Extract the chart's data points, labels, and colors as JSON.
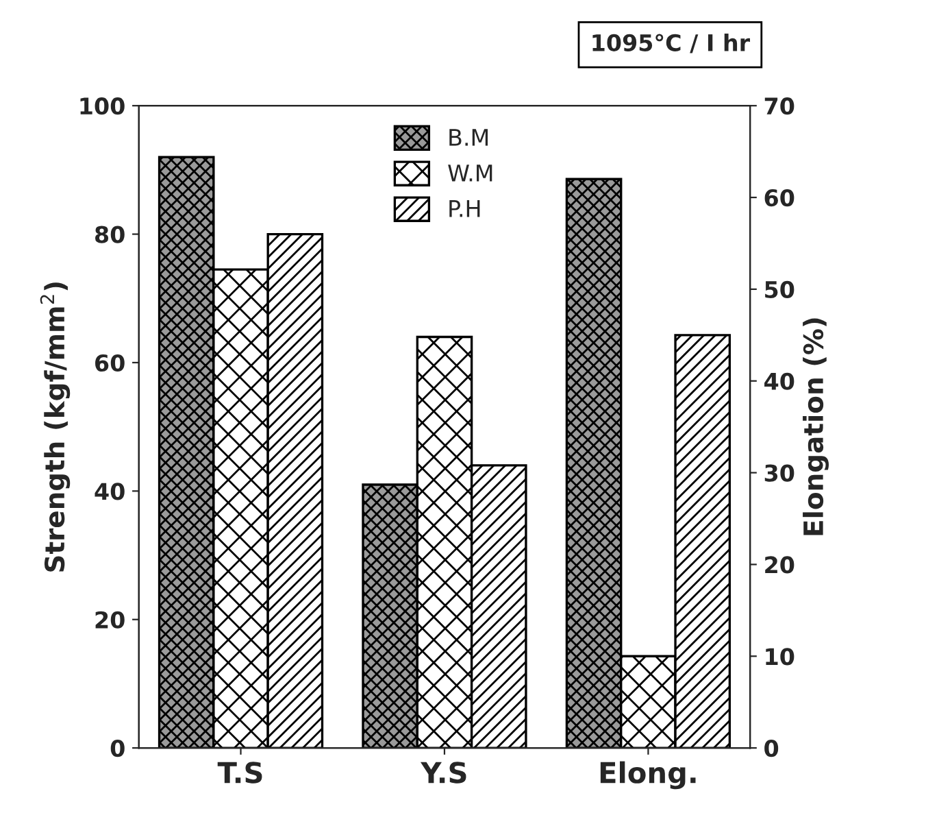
{
  "chart_data": {
    "type": "bar",
    "categories": [
      "T.S",
      "Y.S",
      "Elong."
    ],
    "series": [
      {
        "name": "B.M",
        "color": "#000000",
        "values": [
          92,
          41,
          null
        ]
      },
      {
        "name": "W.M",
        "color": "#000000",
        "values": [
          74.5,
          64,
          null
        ]
      },
      {
        "name": "P.H",
        "color": "#000000",
        "values": [
          80,
          44,
          null
        ]
      },
      {
        "color": "#000000",
        "values": [
          null,
          null,
          62
        ],
        "axis": "y2"
      },
      {
        "color": "#000000",
        "values": [
          null,
          null,
          10
        ],
        "axis": "y2"
      },
      {
        "color": "#000000",
        "values": [
          null,
          null,
          45
        ],
        "axis": "y2"
      }
    ],
    "ylabel": "Strength (kgf/mm$^{2}$)",
    "y2label": "Elongation (%)",
    "ylim": [
      0,
      100
    ],
    "yticks": [
      0,
      20,
      40,
      60,
      80,
      100
    ],
    "y2lim": [
      0,
      70
    ],
    "y2ticks": [
      0,
      10,
      20,
      30,
      40,
      50,
      60,
      70
    ],
    "annotations": [
      "1095°C / I hr"
    ],
    "legend": "top",
    "grid": false
  }
}
